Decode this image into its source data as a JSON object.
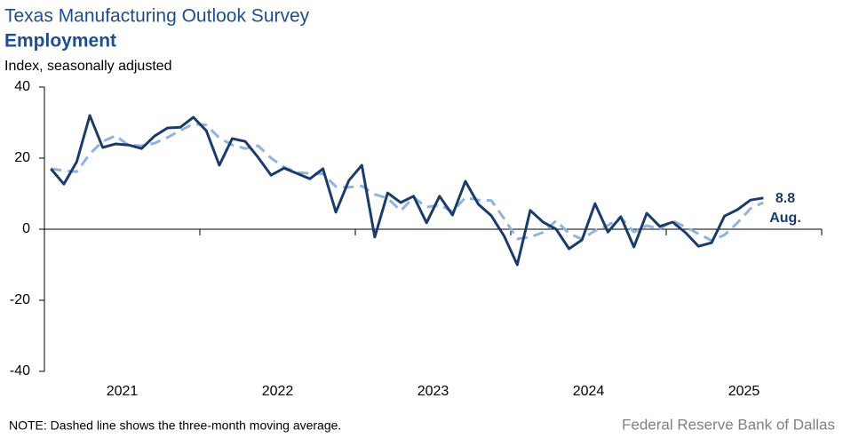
{
  "chart_data": {
    "type": "line",
    "title": "Texas Manufacturing Outlook Survey",
    "subtitle": "Employment",
    "ylabel": "Index, seasonally adjusted",
    "note": "NOTE: Dashed line shows the three-month  moving average.",
    "source": "Federal Reserve Bank of Dallas",
    "annotation": "Aug.",
    "x": [
      2021.042,
      2021.125,
      2021.208,
      2021.292,
      2021.375,
      2021.458,
      2021.542,
      2021.625,
      2021.708,
      2021.792,
      2021.875,
      2021.958,
      2022.042,
      2022.125,
      2022.208,
      2022.292,
      2022.375,
      2022.458,
      2022.542,
      2022.625,
      2022.708,
      2022.792,
      2022.875,
      2022.958,
      2023.042,
      2023.125,
      2023.208,
      2023.292,
      2023.375,
      2023.458,
      2023.542,
      2023.625,
      2023.708,
      2023.792,
      2023.875,
      2023.958,
      2024.042,
      2024.125,
      2024.208,
      2024.292,
      2024.375,
      2024.458,
      2024.542,
      2024.625,
      2024.708,
      2024.792,
      2024.875,
      2024.958,
      2025.042,
      2025.125,
      2025.208,
      2025.292,
      2025.375,
      2025.458,
      2025.542,
      2025.625
    ],
    "series": [
      {
        "name": "Employment",
        "color": "#1b3c6b",
        "dashed": false,
        "values": [
          17,
          12.7,
          19,
          32,
          23,
          24,
          23.7,
          22.7,
          26.2,
          28.5,
          28.7,
          31.5,
          27.7,
          18,
          25.5,
          24.7,
          20.2,
          15.2,
          17.2,
          15.7,
          14.2,
          17,
          4.8,
          13.7,
          18,
          -2.2,
          10.2,
          7.5,
          9.3,
          1.8,
          9.3,
          4,
          13.5,
          7,
          3.8,
          -2,
          -10,
          5.3,
          2,
          0,
          -5.5,
          -3,
          7.2,
          -0.8,
          3.5,
          -5,
          4.5,
          0.8,
          2,
          -1,
          -4.8,
          -3.8,
          3.7,
          5.5,
          8.2,
          8.8
        ]
      },
      {
        "name": "Three-month moving average",
        "color": "#8fb4e0",
        "dashed": true,
        "values": [
          17,
          16.5,
          16.2,
          21.2,
          24.7,
          26.3,
          23.6,
          23.5,
          24.2,
          25.8,
          27.8,
          29.6,
          29.3,
          25.7,
          23.7,
          22.7,
          23.5,
          20,
          17.5,
          16,
          15.7,
          15.6,
          12,
          11.8,
          12.2,
          9.8,
          8.7,
          5.2,
          9,
          6.2,
          6.8,
          5,
          8.9,
          8.2,
          8.1,
          2.9,
          -2.7,
          -2.2,
          -0.9,
          2.4,
          -1.2,
          -2.8,
          -0.4,
          1.1,
          3.3,
          -0.8,
          1,
          0.1,
          2.4,
          0.6,
          -1.3,
          -3.2,
          -1.6,
          1.8,
          5.8,
          7.5
        ]
      }
    ],
    "xlim": [
      2021,
      2026
    ],
    "xtick_marks": [
      2021,
      2022,
      2023,
      2024,
      2025,
      2026
    ],
    "xticks": [
      {
        "value": 2021.5,
        "label": "2021"
      },
      {
        "value": 2022.5,
        "label": "2022"
      },
      {
        "value": 2023.5,
        "label": "2023"
      },
      {
        "value": 2024.5,
        "label": "2024"
      },
      {
        "value": 2025.5,
        "label": "2025"
      }
    ],
    "ylim": [
      -40,
      40
    ],
    "yticks": [
      -40,
      -20,
      0,
      20,
      40
    ]
  }
}
